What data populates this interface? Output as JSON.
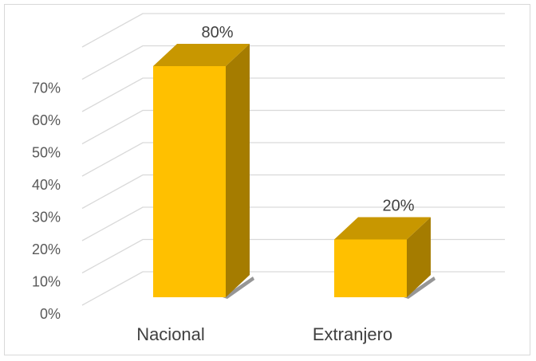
{
  "chart_data": {
    "type": "bar",
    "style": "3d-column",
    "categories": [
      "Nacional",
      "Extranjero"
    ],
    "values": [
      80,
      20
    ],
    "data_labels": [
      "80%",
      "20%"
    ],
    "y_tick_labels": [
      "0%",
      "10%",
      "20%",
      "30%",
      "40%",
      "50%",
      "60%",
      "70%"
    ],
    "ylim": [
      0,
      80
    ],
    "grid": true,
    "title": "",
    "xlabel": "",
    "ylabel": ""
  },
  "colors": {
    "bar_front": "#FFC000",
    "bar_top": "#C89700",
    "bar_side": "#A57C00",
    "gridline": "#d9d9d9",
    "shadow": "#404040"
  }
}
